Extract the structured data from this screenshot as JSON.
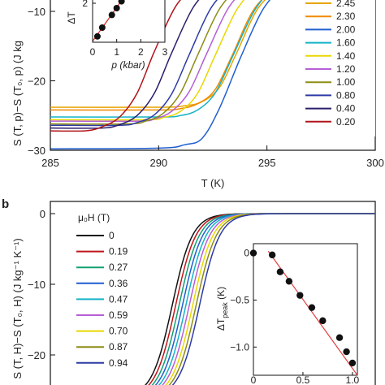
{
  "chart_data": [
    {
      "type": "line",
      "panel": "a",
      "xlabel": "T (K)",
      "ylabel": "S (T, p)−S (T₀, p) (J kg",
      "xlim": [
        285,
        300
      ],
      "ylim": [
        -30,
        -7
      ],
      "x_ticks": [
        "285",
        "290",
        "295",
        "300"
      ],
      "y_ticks": [
        "−10",
        "−20",
        "−30"
      ],
      "legend_placement": "right",
      "series": [
        {
          "name": "2.45",
          "color": "#e8a400",
          "x": [
            285,
            290,
            291.2,
            292,
            292.8,
            293.6,
            294.6,
            295.8
          ],
          "values": [
            -23.8,
            -23.8,
            -23.6,
            -23.0,
            -21.0,
            -16.0,
            -9.5,
            -6
          ]
        },
        {
          "name": "2.30",
          "color": "#f18a00",
          "x": [
            285,
            290,
            291.0,
            291.8,
            292.6,
            293.4,
            294.4,
            295.6
          ],
          "values": [
            -24.2,
            -24.2,
            -24.0,
            -23.3,
            -21.3,
            -16.3,
            -9.7,
            -6
          ]
        },
        {
          "name": "2.00",
          "color": "#1f5fd0",
          "x": [
            285,
            290,
            291.2,
            292.0,
            292.8,
            293.8,
            294.8,
            295.8
          ],
          "values": [
            -29.8,
            -29.7,
            -29.2,
            -28.3,
            -24.0,
            -16.5,
            -9.8,
            -6
          ]
        },
        {
          "name": "1.60",
          "color": "#16b3c6",
          "x": [
            285,
            290,
            291.0,
            291.8,
            292.6,
            293.4,
            294.4,
            295.4
          ],
          "values": [
            -25.2,
            -25.2,
            -25.0,
            -24.2,
            -21.8,
            -16.6,
            -10.0,
            -6
          ]
        },
        {
          "name": "1.40",
          "color": "#e8d800",
          "x": [
            285,
            289.4,
            290.2,
            291.0,
            291.8,
            292.6,
            293.6,
            294.6
          ],
          "values": [
            -25.6,
            -25.6,
            -25.3,
            -24.4,
            -21.8,
            -16.4,
            -9.8,
            -6
          ]
        },
        {
          "name": "1.20",
          "color": "#b65fd6",
          "x": [
            285,
            289.0,
            289.8,
            290.6,
            291.4,
            292.2,
            293.2,
            294.2
          ],
          "values": [
            -25.8,
            -25.8,
            -25.5,
            -24.4,
            -21.6,
            -16.2,
            -9.6,
            -6
          ]
        },
        {
          "name": "1.00",
          "color": "#8c8c14",
          "x": [
            285,
            288.6,
            289.4,
            290.2,
            291.0,
            291.8,
            292.8,
            293.8
          ],
          "values": [
            -26.2,
            -26.2,
            -25.8,
            -24.7,
            -21.8,
            -16.3,
            -9.7,
            -6
          ]
        },
        {
          "name": "0.80",
          "color": "#2d3aa6",
          "x": [
            285,
            288.2,
            289.0,
            289.8,
            290.6,
            291.4,
            292.4,
            293.4
          ],
          "values": [
            -26.4,
            -26.4,
            -26.0,
            -24.9,
            -21.9,
            -16.3,
            -9.6,
            -6
          ]
        },
        {
          "name": "0.40",
          "color": "#2a1f6e",
          "x": [
            285,
            287.4,
            288.2,
            289.0,
            289.8,
            290.6,
            291.6,
            292.6
          ],
          "values": [
            -26.8,
            -26.8,
            -26.3,
            -25.0,
            -21.8,
            -16.0,
            -9.4,
            -6
          ]
        },
        {
          "name": "0.20",
          "color": "#b0141a",
          "x": [
            285,
            286.6,
            287.4,
            288.2,
            289.0,
            289.8,
            290.8,
            291.8
          ],
          "values": [
            -27.2,
            -27.2,
            -26.6,
            -25.2,
            -21.8,
            -15.8,
            -9.2,
            -6
          ]
        }
      ],
      "inset": {
        "xlabel": "p (kbar)",
        "ylabel": "ΔT",
        "xlim": [
          0,
          3
        ],
        "ylim": [
          0,
          3
        ],
        "x_ticks": [
          "0",
          "1",
          "2",
          "3"
        ],
        "y_ticks": [
          "2"
        ],
        "fit_color": "#d9251c",
        "points_x": [
          0.2,
          0.4,
          0.8,
          1.0,
          1.2,
          1.4
        ],
        "points_y": [
          0.3,
          0.75,
          1.4,
          1.75,
          2.1,
          2.55
        ]
      }
    },
    {
      "type": "line",
      "panel": "b",
      "xlabel": "",
      "ylabel": "S (T, H)−S (T₀, H) (J kg⁻¹ K⁻¹)",
      "xlim": [
        285,
        300
      ],
      "ylim": [
        -26,
        2
      ],
      "y_ticks": [
        "0",
        "−10",
        "−20"
      ],
      "legend_title": "μ₀H (T)",
      "legend_placement": "left",
      "series": [
        {
          "name": "0",
          "color": "#111111"
        },
        {
          "name": "0.19",
          "color": "#c0141a"
        },
        {
          "name": "0.27",
          "color": "#12a070"
        },
        {
          "name": "0.36",
          "color": "#1f5fd0"
        },
        {
          "name": "0.47",
          "color": "#16b3c6"
        },
        {
          "name": "0.59",
          "color": "#b65fd6"
        },
        {
          "name": "0.70",
          "color": "#e8d800"
        },
        {
          "name": "0.87",
          "color": "#8c8c14"
        },
        {
          "name": "0.94",
          "color": "#2d3aa6"
        }
      ],
      "inset": {
        "ylabel": "ΔT",
        "ylabel_sub": "peak",
        "ylabel_unit": " (K)",
        "xlim": [
          0,
          1.05
        ],
        "ylim": [
          -1.3,
          0.1
        ],
        "x_ticks": [
          "0",
          "0.5",
          "1.0"
        ],
        "y_ticks": [
          "0",
          "−0.5",
          "−1.0"
        ],
        "fit_color": "#e04040",
        "points_x": [
          0.0,
          0.19,
          0.27,
          0.36,
          0.47,
          0.59,
          0.7,
          0.87,
          0.94,
          1.0
        ],
        "points_y": [
          0.0,
          -0.02,
          -0.2,
          -0.3,
          -0.45,
          -0.58,
          -0.72,
          -0.9,
          -1.05,
          -1.17
        ]
      }
    }
  ],
  "panel_b_label": "b"
}
